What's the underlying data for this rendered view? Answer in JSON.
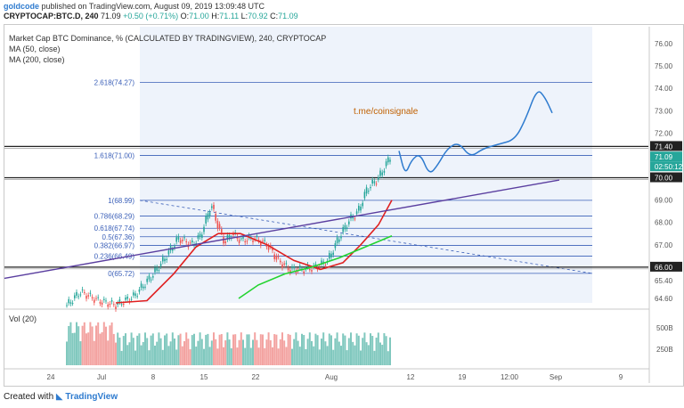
{
  "header": {
    "author": "goldcode",
    "published_text": "published on TradingView.com, August 09, 2019 13:09:48 UTC",
    "symbol": "CRYPTOCAP:BTC.D, 240",
    "last": "71.09",
    "change": "+0.50 (+0.71%)",
    "o_label": "O:",
    "o": "71.00",
    "h_label": "H:",
    "h": "71.11",
    "l_label": "L:",
    "l": "70.92",
    "c_label": "C:",
    "c": "71.09"
  },
  "legend": {
    "title": "Market Cap BTC Dominance, % (CALCULATED BY TRADINGVIEW), 240, CRYPTOCAP",
    "ma50": "MA (50, close)",
    "ma200": "MA (200, close)",
    "vol": "Vol (20)"
  },
  "watermark": "t.me/coinsignale",
  "colors": {
    "up": "#26a69a",
    "down": "#ef5350",
    "ma50": "#e02020",
    "ma200": "#22d32f",
    "trend": "#5b3fa0",
    "fib": "#3a5fb8",
    "projection": "#2e7bcf",
    "shade": "#eef3fb"
  },
  "price_axis": {
    "ticks": [
      "76.00",
      "75.00",
      "74.00",
      "73.00",
      "72.00",
      "71.40",
      "71.09",
      "02:50:12",
      "70.00",
      "69.00",
      "68.00",
      "67.00",
      "66.00",
      "65.40",
      "64.60"
    ]
  },
  "fib_levels": [
    {
      "label": "2.618(74.27)",
      "value": 74.27
    },
    {
      "label": "1.618(71.00)",
      "value": 71.0
    },
    {
      "label": "1(68.99)",
      "value": 68.99
    },
    {
      "label": "0.786(68.29)",
      "value": 68.29
    },
    {
      "label": "0.618(67.74)",
      "value": 67.74
    },
    {
      "label": "0.5(67.36)",
      "value": 67.36
    },
    {
      "label": "0.382(66.97)",
      "value": 66.97
    },
    {
      "label": "0.236(66.49)",
      "value": 66.49
    },
    {
      "label": "0(65.72)",
      "value": 65.72
    }
  ],
  "horizontal_lines": [
    71.4,
    70.0,
    66.0
  ],
  "time_axis": [
    "24",
    "Jul",
    "8",
    "15",
    "22",
    "Aug",
    "12",
    "19",
    "12:00",
    "Sep",
    "9"
  ],
  "volume_axis": [
    "500B",
    "250B"
  ],
  "footer": {
    "created_with": "Created with",
    "brand": "TradingView"
  }
}
